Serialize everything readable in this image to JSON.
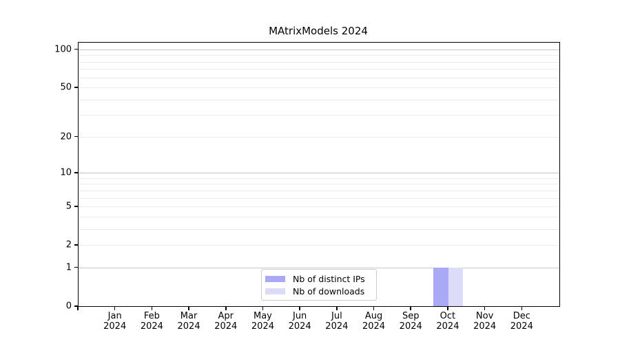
{
  "title": "MAtrixModels 2024",
  "colors": {
    "distinct_ips": "#a9a9f5",
    "downloads": "#dcdcf8",
    "grid_major": "#c6c6c6",
    "grid_minor": "#ebebeb",
    "axis": "#000000",
    "legend_border": "#cccccc"
  },
  "chart_data": {
    "type": "bar",
    "title": "MAtrixModels 2024",
    "categories": [
      {
        "month": "Jan",
        "year": "2024"
      },
      {
        "month": "Feb",
        "year": "2024"
      },
      {
        "month": "Mar",
        "year": "2024"
      },
      {
        "month": "Apr",
        "year": "2024"
      },
      {
        "month": "May",
        "year": "2024"
      },
      {
        "month": "Jun",
        "year": "2024"
      },
      {
        "month": "Jul",
        "year": "2024"
      },
      {
        "month": "Aug",
        "year": "2024"
      },
      {
        "month": "Sep",
        "year": "2024"
      },
      {
        "month": "Oct",
        "year": "2024"
      },
      {
        "month": "Nov",
        "year": "2024"
      },
      {
        "month": "Dec",
        "year": "2024"
      }
    ],
    "series": [
      {
        "name": "Nb of distinct IPs",
        "color_key": "distinct_ips",
        "values": [
          0,
          0,
          0,
          0,
          0,
          0,
          0,
          0,
          0,
          1,
          0,
          0
        ]
      },
      {
        "name": "Nb of downloads",
        "color_key": "downloads",
        "values": [
          0,
          0,
          0,
          0,
          0,
          0,
          0,
          0,
          0,
          1,
          0,
          0
        ]
      }
    ],
    "y_scale": "log10(1+x)",
    "y_ticks": [
      0,
      1,
      2,
      5,
      10,
      20,
      50,
      100
    ],
    "y_gridlines_major": [
      1,
      10,
      100
    ],
    "y_gridlines_minor": [
      2,
      3,
      4,
      5,
      6,
      7,
      8,
      9,
      20,
      30,
      40,
      50,
      60,
      70,
      80,
      90
    ],
    "ylim": [
      0,
      113
    ],
    "xlabel": "",
    "ylabel": "",
    "grid": "horizontal",
    "legend_position": "lower center"
  }
}
